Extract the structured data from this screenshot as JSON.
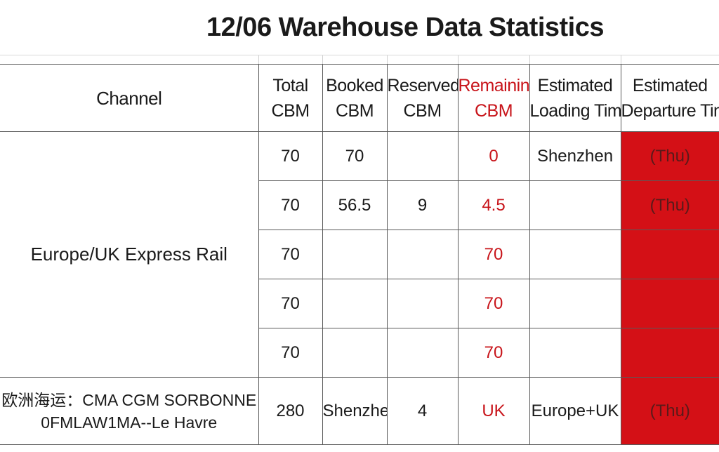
{
  "title": "12/06 Warehouse Data Statistics",
  "headers": {
    "channel": "Channel",
    "total": [
      "Total",
      "CBM"
    ],
    "booked": [
      "Booked",
      "CBM"
    ],
    "reserved": [
      "Reserved",
      "CBM"
    ],
    "remaining": [
      "Remaining",
      "CBM"
    ],
    "loading": [
      "Estimated",
      "Loading Time"
    ],
    "departure": [
      "Estimated",
      "Departure Time"
    ]
  },
  "group1": {
    "channel": "Europe/UK Express Rail",
    "rows": [
      {
        "total": "70",
        "booked": "70",
        "reserved": "",
        "remaining": "0",
        "loading": "Shenzhen",
        "departure": "(Thu)"
      },
      {
        "total": "70",
        "booked": "56.5",
        "reserved": "9",
        "remaining": "4.5",
        "loading": "",
        "departure": "(Thu)"
      },
      {
        "total": "70",
        "booked": "",
        "reserved": "",
        "remaining": "70",
        "loading": "",
        "departure": ""
      },
      {
        "total": "70",
        "booked": "",
        "reserved": "",
        "remaining": "70",
        "loading": "",
        "departure": ""
      },
      {
        "total": "70",
        "booked": "",
        "reserved": "",
        "remaining": "70",
        "loading": "",
        "departure": ""
      }
    ]
  },
  "group2": {
    "channel_line1": "欧洲海运：CMA CGM SORBONNE",
    "channel_line2": "0FMLAW1MA--Le Havre",
    "total": "280",
    "booked": "Shenzhen",
    "reserved": "4",
    "remaining": "UK",
    "loading": "Europe+UK",
    "departure": "(Thu)"
  },
  "colors": {
    "accent_red": "#d41016",
    "text_red": "#c8141a",
    "grid": "#5a5a5a"
  }
}
